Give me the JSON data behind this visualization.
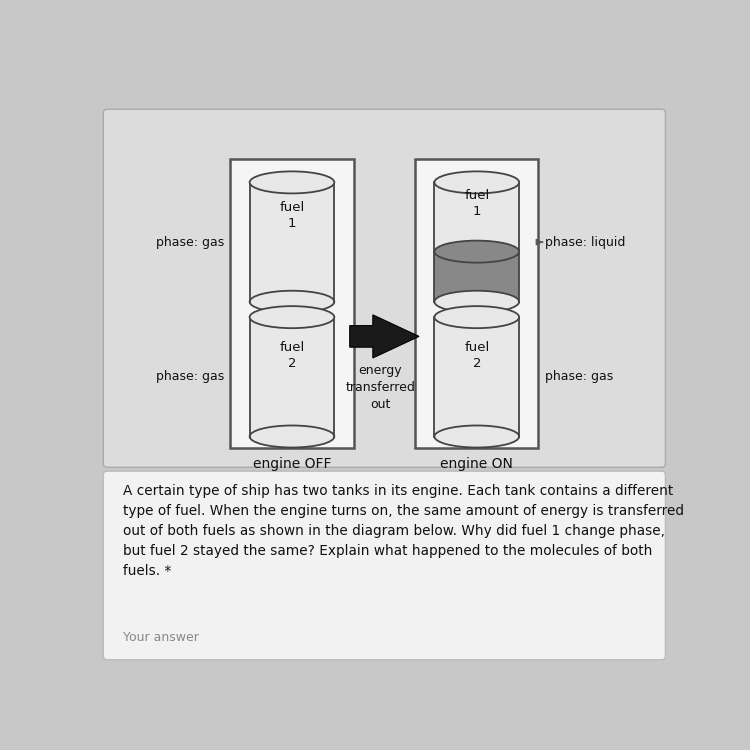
{
  "bg_color": "#c8c8c8",
  "top_panel_bg": "#dcdcdc",
  "bottom_panel_bg": "#f2f2f2",
  "box_bg": "#f5f5f5",
  "tank_fill": "#e8e8e8",
  "liquid_fill": "#888888",
  "arrow_color": "#1a1a1a",
  "border_color": "#444444",
  "box_border": "#555555",
  "text_color": "#111111",
  "gray_text": "#888888",
  "engine_off_label": "engine OFF",
  "engine_on_label": "engine ON",
  "phase_gas_left1": "phase: gas",
  "phase_gas_left2": "phase: gas",
  "phase_liquid_right": "phase: liquid",
  "phase_gas_right": "phase: gas",
  "energy_label": "energy\ntransferred\nout",
  "fuel1_label": "fuel\n1",
  "fuel2_label": "fuel\n2",
  "paragraph_text": "A certain type of ship has two tanks in its engine. Each tank contains a different\ntype of fuel. When the engine turns on, the same amount of energy is transferred\nout of both fuels as shown in the diagram below. Why did fuel 1 change phase,\nbut fuel 2 stayed the same? Explain what happened to the molecules of both\nfuels. *",
  "your_answer_text": "Your answer"
}
